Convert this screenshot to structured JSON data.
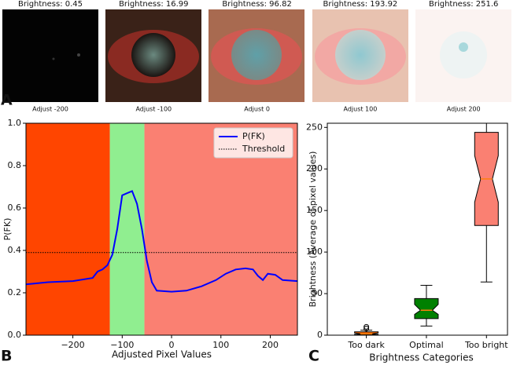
{
  "panel_labels": [
    "A",
    "B",
    "C"
  ],
  "images": [
    {
      "brightness_label": "Brightness: 0.45",
      "adjust_label": "Adjust -200"
    },
    {
      "brightness_label": "Brightness: 16.99",
      "adjust_label": "Adjust -100"
    },
    {
      "brightness_label": "Brightness: 96.82",
      "adjust_label": "Adjust 0"
    },
    {
      "brightness_label": "Brightness: 193.92",
      "adjust_label": "Adjust 100"
    },
    {
      "brightness_label": "Brightness: 251.6",
      "adjust_label": "Adjust 200"
    }
  ],
  "chart_data": [
    {
      "type": "line",
      "xlabel": "Adjusted Pixel Values",
      "ylabel": "P(FK)",
      "xlim": [
        -295,
        255
      ],
      "ylim": [
        0,
        1
      ],
      "xticks": [
        {
          "value": -200,
          "label": "−200"
        },
        {
          "value": -100,
          "label": "−100"
        },
        0,
        100,
        200
      ],
      "yticks": [
        {
          "value": 0,
          "label": "0.0"
        },
        0.2,
        0.4,
        0.6,
        0.8,
        {
          "value": 1,
          "label": "1.0"
        }
      ],
      "regions": [
        {
          "from": -295,
          "to": -125,
          "color": "#ff4500"
        },
        {
          "from": -125,
          "to": -55,
          "color": "#90ee90"
        },
        {
          "from": -55,
          "to": 255,
          "color": "#fa8072"
        }
      ],
      "x": [
        -295,
        -250,
        -200,
        -160,
        -150,
        -140,
        -130,
        -120,
        -110,
        -100,
        -90,
        -80,
        -70,
        -60,
        -50,
        -40,
        -30,
        0,
        30,
        60,
        90,
        110,
        130,
        150,
        165,
        175,
        185,
        195,
        210,
        225,
        255
      ],
      "series": [
        {
          "name": "P(FK)",
          "color": "#0000ff",
          "values": [
            0.24,
            0.25,
            0.255,
            0.27,
            0.3,
            0.31,
            0.33,
            0.38,
            0.5,
            0.66,
            0.67,
            0.68,
            0.62,
            0.5,
            0.35,
            0.25,
            0.21,
            0.205,
            0.21,
            0.23,
            0.26,
            0.29,
            0.31,
            0.315,
            0.31,
            0.28,
            0.26,
            0.29,
            0.285,
            0.26,
            0.255
          ]
        }
      ],
      "threshold": {
        "name": "Threshold",
        "value": 0.39,
        "color": "#000000"
      },
      "legend": "upper right"
    },
    {
      "type": "box",
      "xlabel": "Brightness Categories",
      "ylabel": "Brightness (Average of pixel values)",
      "ylim": [
        0,
        255
      ],
      "yticks": [
        0,
        50,
        100,
        150,
        200,
        250
      ],
      "categories": [
        "Too dark",
        "Optimal",
        "Too bright"
      ],
      "boxes": [
        {
          "color": "#ff6a00",
          "whisker_low": 0,
          "q1": 0.5,
          "median": 1.5,
          "q3": 4,
          "whisker_high": 6,
          "outliers": [
            8,
            10
          ]
        },
        {
          "color": "#008000",
          "whisker_low": 11,
          "q1": 20,
          "median": 30,
          "q3": 44,
          "whisker_high": 60,
          "outliers": []
        },
        {
          "color": "#fa8072",
          "whisker_low": 64,
          "q1": 132,
          "median": 188,
          "q3": 244,
          "whisker_high": 255,
          "outliers": []
        }
      ]
    }
  ]
}
